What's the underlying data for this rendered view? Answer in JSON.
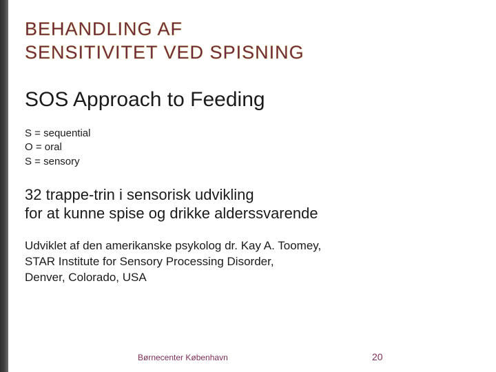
{
  "title_line1": "BEHANDLING AF",
  "title_line2": "SENSITIVITET VED SPISNING",
  "heading": "SOS Approach  to  Feeding",
  "acronym": {
    "line1": "S = sequential",
    "line2": "O = oral",
    "line3": "S = sensory"
  },
  "mid": {
    "line1": "32 trappe-trin i sensorisk udvikling",
    "line2": "for at kunne spise og drikke alderssvarende"
  },
  "credit": {
    "line1": "Udviklet af den amerikanske psykolog dr. Kay A. Toomey,",
    "line2": "STAR Institute for Sensory Processing Disorder,",
    "line3": "Denver, Colorado, USA"
  },
  "footer_org": "Børnecenter København",
  "page_number": "20",
  "colors": {
    "title_fill": "#6b1d47",
    "title_outline": "#b29944",
    "text": "#1a1a1a",
    "footer": "#7b2d57",
    "side_dark": "#2f2f2f",
    "side_light": "#6e6e6e",
    "background": "#ffffff"
  }
}
